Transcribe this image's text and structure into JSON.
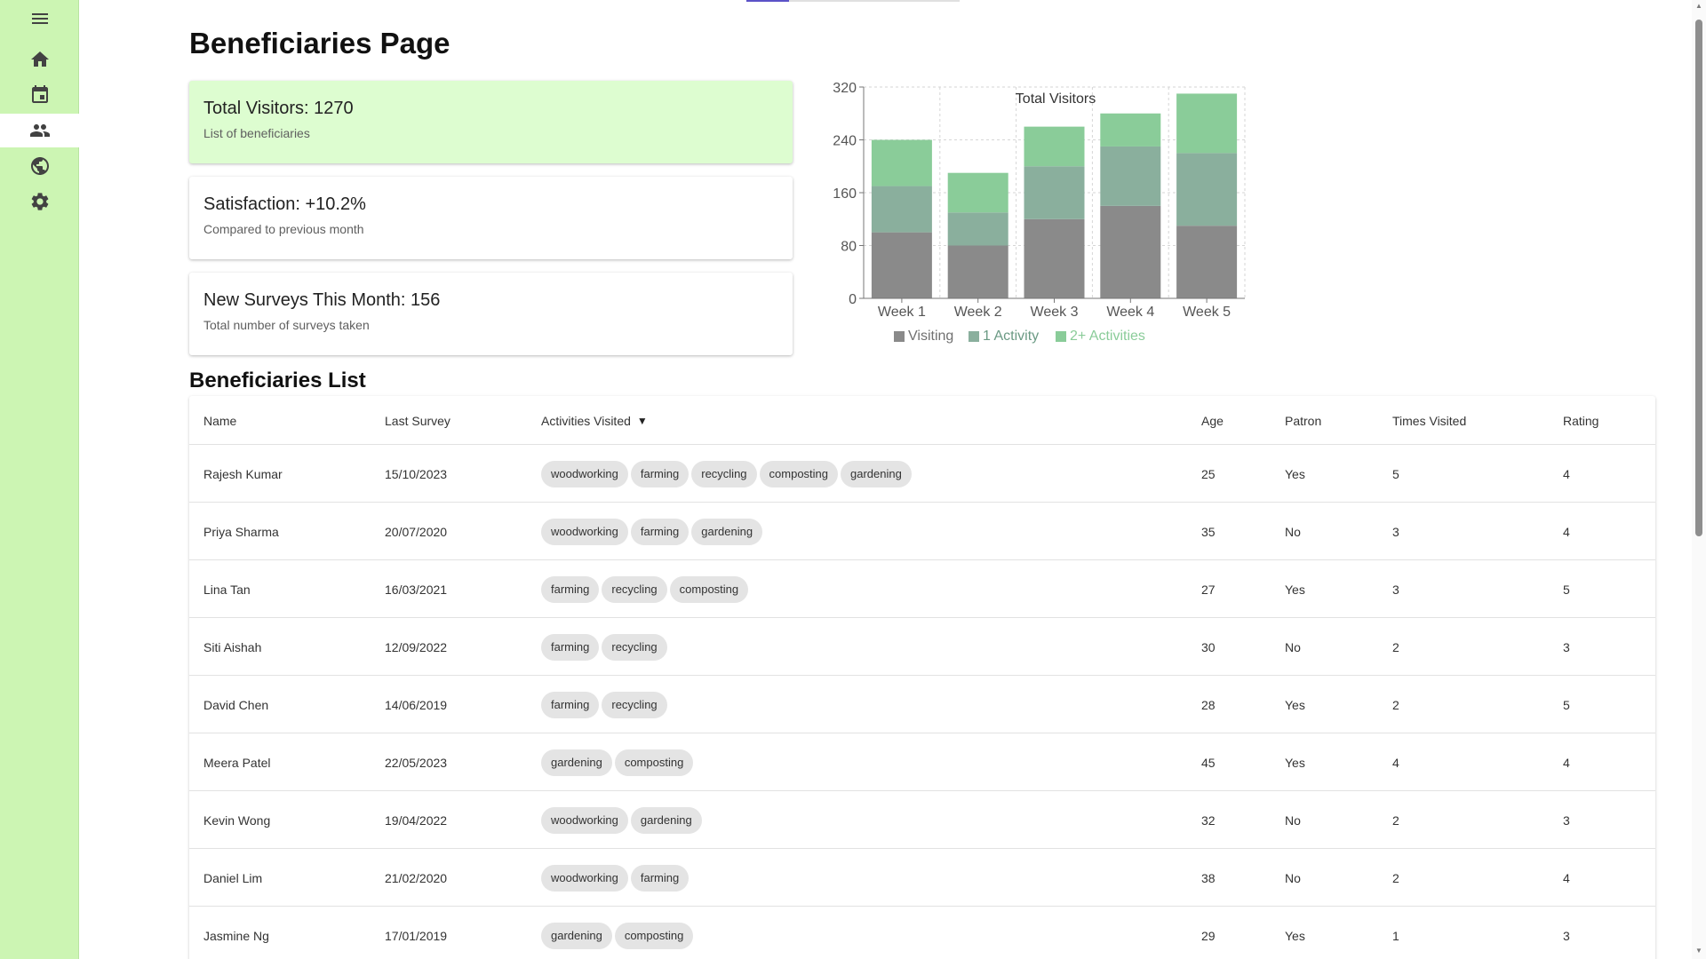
{
  "sidebar": {
    "items": [
      {
        "icon": "menu-icon"
      },
      {
        "icon": "home-icon"
      },
      {
        "icon": "calendar-icon"
      },
      {
        "icon": "people-icon",
        "active": true
      },
      {
        "icon": "sports-icon"
      },
      {
        "icon": "gear-icon"
      }
    ],
    "colors": {
      "background": "#ccf5b3",
      "active": "#ffffff"
    }
  },
  "page": {
    "title": "Beneficiaries Page"
  },
  "cards": [
    {
      "title": "Total Visitors: 1270",
      "subtitle": "List of beneficiaries",
      "active": true
    },
    {
      "title": "Satisfaction: +10.2%",
      "subtitle": "Compared to previous month"
    },
    {
      "title": "New Surveys This Month: 156",
      "subtitle": "Total number of surveys taken"
    }
  ],
  "chart_data": {
    "type": "bar",
    "stacked": true,
    "title": "Total Visitors",
    "categories": [
      "Week 1",
      "Week 2",
      "Week 3",
      "Week 4",
      "Week 5"
    ],
    "series": [
      {
        "name": "Visiting",
        "values": [
          100,
          80,
          120,
          140,
          110
        ],
        "color": "#8a8a8a"
      },
      {
        "name": "1 Activity",
        "values": [
          70,
          50,
          80,
          90,
          110
        ],
        "color": "#8aaf9d"
      },
      {
        "name": "2+ Activities",
        "values": [
          70,
          60,
          60,
          50,
          90
        ],
        "color": "#8acc99"
      }
    ],
    "ylim": [
      0,
      320
    ],
    "yticks": [
      0,
      80,
      160,
      240,
      320
    ],
    "grid": true,
    "legend_position": "bottom"
  },
  "list": {
    "title": "Beneficiaries List",
    "columns": [
      "Name",
      "Last Survey",
      "Activities Visited",
      "Age",
      "Patron",
      "Times Visited",
      "Rating"
    ],
    "sort_indicator": "▼",
    "rows": [
      {
        "name": "Rajesh Kumar",
        "last_survey": "15/10/2023",
        "activities": [
          "woodworking",
          "farming",
          "recycling",
          "composting",
          "gardening"
        ],
        "age": "25",
        "patron": "Yes",
        "times": "5",
        "rating": "4"
      },
      {
        "name": "Priya Sharma",
        "last_survey": "20/07/2020",
        "activities": [
          "woodworking",
          "farming",
          "gardening"
        ],
        "age": "35",
        "patron": "No",
        "times": "3",
        "rating": "4"
      },
      {
        "name": "Lina Tan",
        "last_survey": "16/03/2021",
        "activities": [
          "farming",
          "recycling",
          "composting"
        ],
        "age": "27",
        "patron": "Yes",
        "times": "3",
        "rating": "5"
      },
      {
        "name": "Siti Aishah",
        "last_survey": "12/09/2022",
        "activities": [
          "farming",
          "recycling"
        ],
        "age": "30",
        "patron": "No",
        "times": "2",
        "rating": "3"
      },
      {
        "name": "David Chen",
        "last_survey": "14/06/2019",
        "activities": [
          "farming",
          "recycling"
        ],
        "age": "28",
        "patron": "Yes",
        "times": "2",
        "rating": "5"
      },
      {
        "name": "Meera Patel",
        "last_survey": "22/05/2023",
        "activities": [
          "gardening",
          "composting"
        ],
        "age": "45",
        "patron": "Yes",
        "times": "4",
        "rating": "4"
      },
      {
        "name": "Kevin Wong",
        "last_survey": "19/04/2022",
        "activities": [
          "woodworking",
          "gardening"
        ],
        "age": "32",
        "patron": "No",
        "times": "2",
        "rating": "3"
      },
      {
        "name": "Daniel Lim",
        "last_survey": "21/02/2020",
        "activities": [
          "woodworking",
          "farming"
        ],
        "age": "38",
        "patron": "No",
        "times": "2",
        "rating": "4"
      },
      {
        "name": "Jasmine Ng",
        "last_survey": "17/01/2019",
        "activities": [
          "gardening",
          "composting"
        ],
        "age": "29",
        "patron": "Yes",
        "times": "1",
        "rating": "3"
      }
    ]
  }
}
